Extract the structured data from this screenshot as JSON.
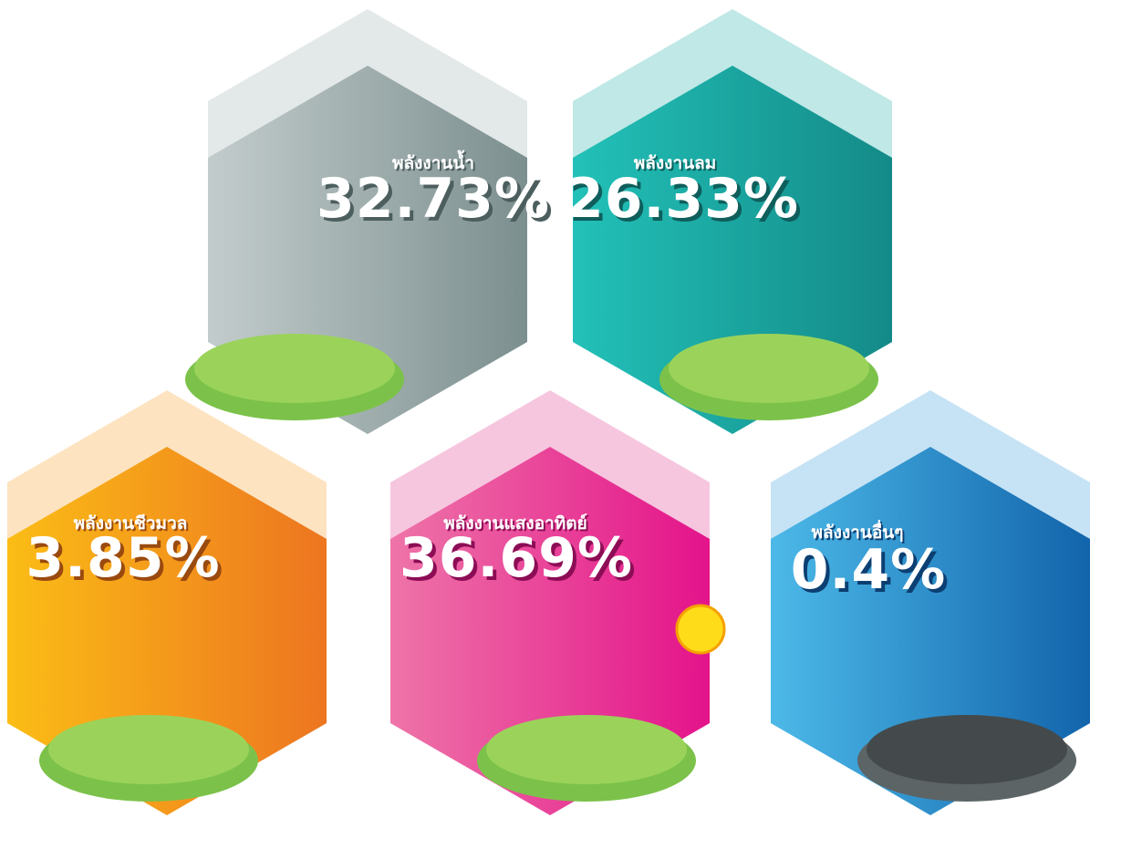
{
  "items": [
    {
      "label": "พลังงานน้ำ",
      "value": "32.73%"
    },
    {
      "label": "พลังงานลม",
      "value": "26.33%"
    },
    {
      "label": "พลังงานชีวมวล",
      "value": "3.85%"
    },
    {
      "label": "พลังงานแสงอาทิตย์",
      "value": "36.69%"
    },
    {
      "label": "พลังงานอื่นๆ",
      "value": "0.4%"
    }
  ]
}
